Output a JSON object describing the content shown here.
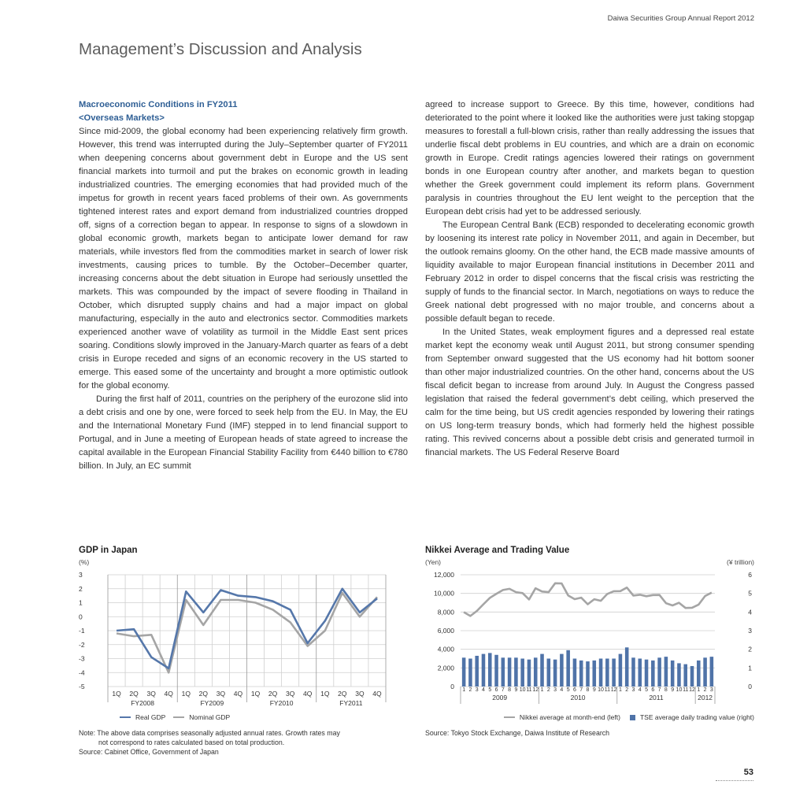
{
  "header": {
    "text": "Daiwa Securities Group  Annual Report 2012"
  },
  "title": "Management’s Discussion and Analysis",
  "section": {
    "heading": "Macroeconomic Conditions in FY2011",
    "subheading": "<Overseas Markets>"
  },
  "body": {
    "left": [
      "Since mid-2009, the global economy had been experiencing relatively firm growth. However, this trend was interrupted during the July–September quarter of FY2011 when deepening concerns about government debt in Europe and the US sent financial markets into turmoil and put the brakes on economic growth in leading industrialized countries. The emerging economies that had provided much of the impetus for growth in recent years faced problems of their own. As governments tightened interest rates and export demand from industrialized countries dropped off, signs of a correction began to appear. In response to signs of a slowdown in global economic growth, markets began to anticipate lower demand for raw materials, while investors fled from the commodities market in search of lower risk investments, causing prices to tumble. By the October–December quarter, increasing concerns about the debt situation in Europe had seriously unsettled the markets. This was compounded by the impact of severe flooding in Thailand in October, which disrupted supply chains and had a major impact on global manufacturing, especially in the auto and electronics sector. Commodities markets experienced another wave of volatility as turmoil in the Middle East sent prices soaring. Conditions slowly improved in the January-March quarter as fears of a debt crisis in Europe receded and signs of an economic recovery in the US started to emerge. This eased some of the uncertainty and brought a more optimistic outlook for the global economy.",
      "During the first half of 2011, countries on the periphery of the eurozone slid into a debt crisis and one by one, were forced to seek help from the EU. In May, the EU and the International Monetary Fund (IMF) stepped in to lend financial support to Portugal, and in June a meeting of European heads of state agreed to increase the capital available in the European Financial Stability Facility from €440 billion to €780 billion. In July, an EC summit"
    ],
    "right": [
      "agreed to increase support to Greece. By this time, however, conditions had deteriorated to the point where it looked like the authorities were just taking stopgap measures to forestall a full-blown crisis, rather than really addressing the issues that underlie fiscal debt problems in EU countries, and which are a drain on economic growth in Europe. Credit ratings agencies lowered their ratings on government bonds in one European country after another, and markets began to question whether the Greek government could implement its reform plans. Government paralysis in countries throughout the EU lent weight to the perception that the European debt crisis had yet to be addressed seriously.",
      "The European Central Bank (ECB) responded to decelerating economic growth by loosening its interest rate policy in November 2011, and again in December, but the outlook remains gloomy. On the other hand, the ECB made massive amounts of liquidity available to major European financial institutions in December 2011 and February 2012 in order to dispel concerns that the fiscal crisis was restricting the supply of funds to the financial sector. In March, negotiations on ways to reduce the Greek national debt progressed with no major trouble, and concerns about a possible default began to recede.",
      "In the United States, weak employment figures and a depressed real estate market kept the economy weak until August 2011, but strong consumer spending from September onward suggested that the US economy had hit bottom sooner than other major industrialized countries. On the other hand, concerns about the US fiscal deficit began to increase from around July. In August the Congress passed legislation that raised the federal government’s debt ceiling, which preserved the calm for the time being, but US credit agencies responded by lowering their ratings on US long-term treasury bonds, which had formerly held the highest possible rating. This revived concerns about a possible debt crisis and generated turmoil in financial markets. The US Federal Reserve Board"
    ]
  },
  "gdp": {
    "title": "GDP in Japan",
    "yunit": "(%)",
    "legend": [
      "Real GDP",
      "Nominal GDP"
    ],
    "note_line1": "Note: The above data comprises seasonally adjusted annual rates. Growth rates may",
    "note_line2": "not correspond to rates calculated based on total production.",
    "source": "Source: Cabinet Office, Government of Japan"
  },
  "nikkei": {
    "title": "Nikkei Average and Trading Value",
    "yunit_left": "(Yen)",
    "yunit_right": "(¥ trillion)",
    "legend": [
      "Nikkei average at month-end (left)",
      "TSE average daily trading value (right)"
    ],
    "source": "Source: Tokyo Stock Exchange, Daiwa Institute of Research"
  },
  "chart_data": [
    {
      "type": "line",
      "title": "GDP in Japan",
      "ylabel": "(%)",
      "ylim": [
        -5,
        3
      ],
      "yticks": [
        "3",
        "2",
        "1",
        "0",
        "-1",
        "-2",
        "-3",
        "-4",
        "-5"
      ],
      "categories": [
        "1Q",
        "2Q",
        "3Q",
        "4Q",
        "1Q",
        "2Q",
        "3Q",
        "4Q",
        "1Q",
        "2Q",
        "3Q",
        "4Q",
        "1Q",
        "2Q",
        "3Q",
        "4Q"
      ],
      "groups": [
        "FY2008",
        "FY2009",
        "FY2010",
        "FY2011"
      ],
      "grid": true,
      "legend_position": "bottom",
      "series": [
        {
          "name": "Real GDP",
          "color": "#5577aa",
          "values": [
            -1.0,
            -0.9,
            -2.9,
            -3.7,
            1.8,
            0.3,
            1.9,
            1.5,
            1.4,
            1.1,
            0.5,
            -1.9,
            -0.3,
            2.0,
            0.3,
            1.3
          ]
        },
        {
          "name": "Nominal GDP",
          "color": "#a5a5a5",
          "values": [
            -1.2,
            -1.4,
            -1.3,
            -4.0,
            1.2,
            -0.6,
            1.2,
            1.2,
            1.0,
            0.5,
            -0.4,
            -2.1,
            -1.0,
            1.7,
            0.0,
            1.4
          ]
        }
      ]
    },
    {
      "type": "bar",
      "title": "Nikkei Average and Trading Value",
      "ylabel": "(Yen)",
      "ylabel_right": "(¥ trillion)",
      "ylim": [
        0,
        12000
      ],
      "ylim_right": [
        0,
        6
      ],
      "yticks": [
        "12,000",
        "10,000",
        "8,000",
        "6,000",
        "4,000",
        "2,000",
        "0"
      ],
      "yticks_right": [
        "6",
        "5",
        "4",
        "3",
        "2",
        "1",
        "0"
      ],
      "categories": [
        "1",
        "2",
        "3",
        "4",
        "5",
        "6",
        "7",
        "8",
        "9",
        "10",
        "11",
        "12",
        "1",
        "2",
        "3",
        "4",
        "5",
        "6",
        "7",
        "8",
        "9",
        "10",
        "11",
        "12",
        "1",
        "2",
        "3",
        "4",
        "5",
        "6",
        "7",
        "8",
        "9",
        "10",
        "11",
        "12",
        "1",
        "2",
        "3"
      ],
      "groups": [
        "2009",
        "2010",
        "2011",
        "2012"
      ],
      "grid": true,
      "legend_position": "bottom",
      "series": [
        {
          "name": "Nikkei average at month-end (left)",
          "axis": "left",
          "kind": "line",
          "color": "#a5a5a5",
          "values": [
            7990,
            7570,
            8110,
            8830,
            9520,
            9960,
            10360,
            10490,
            10130,
            10030,
            9350,
            10550,
            10200,
            10130,
            11090,
            11060,
            9770,
            9380,
            9540,
            8830,
            9370,
            9200,
            9940,
            10230,
            10240,
            10620,
            9760,
            9850,
            9690,
            9820,
            9830,
            8950,
            8700,
            8990,
            8430,
            8460,
            8800,
            9720,
            10080
          ]
        },
        {
          "name": "TSE average daily trading value (right)",
          "axis": "right",
          "kind": "bar",
          "color": "#4f73a8",
          "values": [
            1.55,
            1.5,
            1.65,
            1.75,
            1.8,
            1.7,
            1.55,
            1.55,
            1.55,
            1.5,
            1.45,
            1.55,
            1.75,
            1.5,
            1.45,
            1.75,
            1.95,
            1.5,
            1.4,
            1.35,
            1.4,
            1.5,
            1.5,
            1.5,
            1.75,
            2.1,
            1.55,
            1.5,
            1.45,
            1.4,
            1.55,
            1.6,
            1.4,
            1.25,
            1.2,
            1.1,
            1.4,
            1.55,
            1.6
          ]
        }
      ]
    }
  ],
  "page_number": "53"
}
